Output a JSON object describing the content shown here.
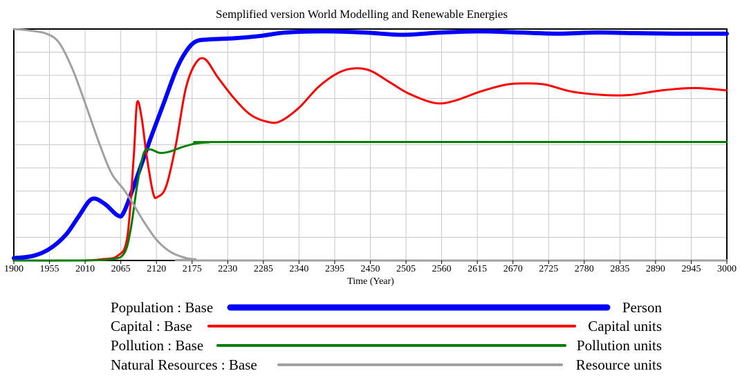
{
  "chart_data": {
    "type": "line",
    "title": "Semplified version World Modelling and Renewable Energies",
    "xlabel": "Time (Year)",
    "ylabel": "",
    "xlim": [
      1900,
      3000
    ],
    "ylim": [
      0,
      1
    ],
    "x_ticks": [
      1900,
      1955,
      2010,
      2065,
      2120,
      2175,
      2230,
      2285,
      2340,
      2395,
      2450,
      2505,
      2560,
      2615,
      2670,
      2725,
      2780,
      2835,
      2890,
      2945,
      3000
    ],
    "grid": true,
    "y_gridlines": 10,
    "x_gridlines": 20,
    "series": [
      {
        "name": "Population : Base",
        "unit": "Person",
        "color": "#0000ff",
        "points": [
          [
            1900,
            0.01
          ],
          [
            1930,
            0.02
          ],
          [
            1955,
            0.05
          ],
          [
            1980,
            0.11
          ],
          [
            2000,
            0.19
          ],
          [
            2020,
            0.265
          ],
          [
            2040,
            0.245
          ],
          [
            2060,
            0.195
          ],
          [
            2070,
            0.21
          ],
          [
            2090,
            0.36
          ],
          [
            2110,
            0.52
          ],
          [
            2130,
            0.67
          ],
          [
            2150,
            0.82
          ],
          [
            2165,
            0.9
          ],
          [
            2180,
            0.945
          ],
          [
            2200,
            0.955
          ],
          [
            2240,
            0.96
          ],
          [
            2280,
            0.97
          ],
          [
            2320,
            0.985
          ],
          [
            2380,
            0.99
          ],
          [
            2440,
            0.985
          ],
          [
            2500,
            0.975
          ],
          [
            2560,
            0.985
          ],
          [
            2620,
            0.99
          ],
          [
            2680,
            0.985
          ],
          [
            2740,
            0.98
          ],
          [
            2800,
            0.985
          ],
          [
            2860,
            0.982
          ],
          [
            2920,
            0.98
          ],
          [
            3000,
            0.98
          ]
        ]
      },
      {
        "name": "Capital : Base",
        "unit": "Capital units",
        "color": "#ff0000",
        "points": [
          [
            1900,
            0.0
          ],
          [
            2000,
            0.0
          ],
          [
            2035,
            0.005
          ],
          [
            2060,
            0.02
          ],
          [
            2075,
            0.1
          ],
          [
            2085,
            0.45
          ],
          [
            2090,
            0.68
          ],
          [
            2097,
            0.62
          ],
          [
            2105,
            0.45
          ],
          [
            2115,
            0.29
          ],
          [
            2122,
            0.275
          ],
          [
            2135,
            0.32
          ],
          [
            2150,
            0.5
          ],
          [
            2165,
            0.74
          ],
          [
            2180,
            0.85
          ],
          [
            2195,
            0.87
          ],
          [
            2215,
            0.79
          ],
          [
            2240,
            0.7
          ],
          [
            2265,
            0.63
          ],
          [
            2290,
            0.6
          ],
          [
            2310,
            0.6
          ],
          [
            2340,
            0.66
          ],
          [
            2370,
            0.75
          ],
          [
            2400,
            0.81
          ],
          [
            2425,
            0.83
          ],
          [
            2450,
            0.82
          ],
          [
            2480,
            0.77
          ],
          [
            2510,
            0.72
          ],
          [
            2550,
            0.68
          ],
          [
            2580,
            0.69
          ],
          [
            2620,
            0.73
          ],
          [
            2660,
            0.76
          ],
          [
            2690,
            0.765
          ],
          [
            2720,
            0.76
          ],
          [
            2760,
            0.73
          ],
          [
            2810,
            0.715
          ],
          [
            2850,
            0.715
          ],
          [
            2900,
            0.735
          ],
          [
            2950,
            0.745
          ],
          [
            3000,
            0.735
          ]
        ]
      },
      {
        "name": "Pollution : Base",
        "unit": "Pollution units",
        "color": "#008000",
        "points": [
          [
            1900,
            0.0
          ],
          [
            2000,
            0.0
          ],
          [
            2050,
            0.005
          ],
          [
            2070,
            0.03
          ],
          [
            2080,
            0.13
          ],
          [
            2090,
            0.32
          ],
          [
            2100,
            0.46
          ],
          [
            2110,
            0.48
          ],
          [
            2125,
            0.465
          ],
          [
            2140,
            0.47
          ],
          [
            2160,
            0.49
          ],
          [
            2180,
            0.505
          ],
          [
            2200,
            0.51
          ],
          [
            2250,
            0.512
          ],
          [
            3000,
            0.512
          ]
        ]
      },
      {
        "name": "Natural Resources : Base",
        "unit": "Resource units",
        "color": "#a0a0a0",
        "points": [
          [
            1900,
            1.0
          ],
          [
            1920,
            0.995
          ],
          [
            1950,
            0.98
          ],
          [
            1970,
            0.94
          ],
          [
            1990,
            0.83
          ],
          [
            2010,
            0.68
          ],
          [
            2030,
            0.52
          ],
          [
            2050,
            0.38
          ],
          [
            2070,
            0.305
          ],
          [
            2085,
            0.24
          ],
          [
            2100,
            0.17
          ],
          [
            2120,
            0.09
          ],
          [
            2140,
            0.04
          ],
          [
            2160,
            0.015
          ],
          [
            2180,
            0.005
          ],
          [
            2220,
            0.0
          ],
          [
            3000,
            0.0
          ]
        ]
      }
    ]
  }
}
